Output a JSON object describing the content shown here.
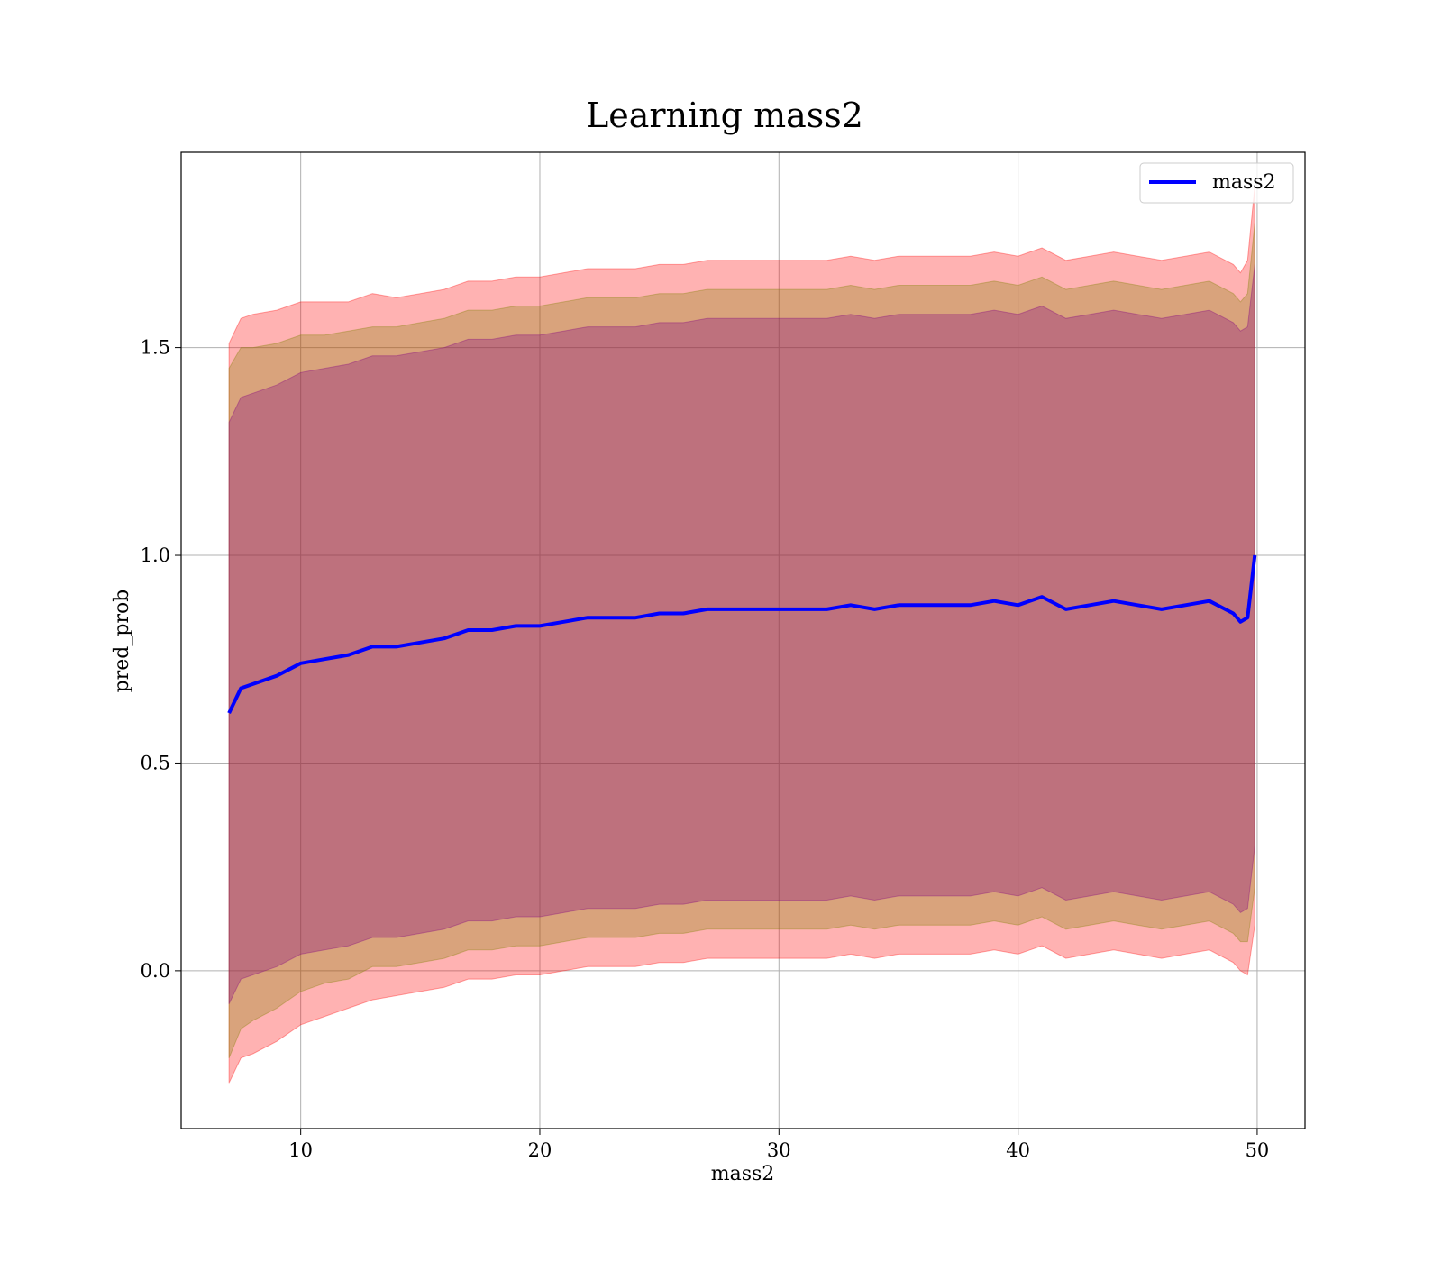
{
  "chart_data": {
    "type": "line",
    "title": "Learning mass2",
    "xlabel": "mass2",
    "ylabel": "pred_prob",
    "xlim": [
      5,
      52
    ],
    "ylim": [
      -0.38,
      1.97
    ],
    "x_ticks": [
      10,
      20,
      30,
      40,
      50
    ],
    "x_tick_labels": [
      "10",
      "20",
      "30",
      "40",
      "50"
    ],
    "y_ticks": [
      0.0,
      0.5,
      1.0,
      1.5
    ],
    "y_tick_labels": [
      "0.0",
      "0.5",
      "1.0",
      "1.5"
    ],
    "grid": true,
    "legend": {
      "position": "top-right",
      "entries": [
        "mass2"
      ]
    },
    "series": [
      {
        "name": "mass2",
        "color": "#0000ff",
        "x": [
          7.0,
          7.5,
          8,
          9,
          10,
          11,
          12,
          13,
          14,
          15,
          16,
          17,
          18,
          19,
          20,
          21,
          22,
          23,
          24,
          25,
          26,
          27,
          28,
          29,
          30,
          31,
          32,
          33,
          34,
          35,
          36,
          37,
          38,
          39,
          40,
          41,
          42,
          43,
          44,
          45,
          46,
          47,
          48,
          49,
          49.3,
          49.6,
          49.9
        ],
        "y": [
          0.62,
          0.68,
          0.69,
          0.71,
          0.74,
          0.75,
          0.76,
          0.78,
          0.78,
          0.79,
          0.8,
          0.82,
          0.82,
          0.83,
          0.83,
          0.84,
          0.85,
          0.85,
          0.85,
          0.86,
          0.86,
          0.87,
          0.87,
          0.87,
          0.87,
          0.87,
          0.87,
          0.88,
          0.87,
          0.88,
          0.88,
          0.88,
          0.88,
          0.89,
          0.88,
          0.9,
          0.87,
          0.88,
          0.89,
          0.88,
          0.87,
          0.88,
          0.89,
          0.86,
          0.84,
          0.85,
          1.0
        ]
      }
    ],
    "bands": [
      {
        "name": "band-outer",
        "color": "#ff0000",
        "opacity": 0.3,
        "half_width": [
          0.89,
          0.89,
          0.89,
          0.88,
          0.87,
          0.86,
          0.85,
          0.85,
          0.84,
          0.84,
          0.84,
          0.84,
          0.84,
          0.84,
          0.84,
          0.84,
          0.84,
          0.84,
          0.84,
          0.84,
          0.84,
          0.84,
          0.84,
          0.84,
          0.84,
          0.84,
          0.84,
          0.84,
          0.84,
          0.84,
          0.84,
          0.84,
          0.84,
          0.84,
          0.84,
          0.84,
          0.84,
          0.84,
          0.84,
          0.84,
          0.84,
          0.84,
          0.84,
          0.84,
          0.84,
          0.86,
          0.89
        ]
      },
      {
        "name": "band-middle",
        "color": "#808000",
        "opacity": 0.3,
        "half_width": [
          0.83,
          0.82,
          0.81,
          0.8,
          0.79,
          0.78,
          0.78,
          0.77,
          0.77,
          0.77,
          0.77,
          0.77,
          0.77,
          0.77,
          0.77,
          0.77,
          0.77,
          0.77,
          0.77,
          0.77,
          0.77,
          0.77,
          0.77,
          0.77,
          0.77,
          0.77,
          0.77,
          0.77,
          0.77,
          0.77,
          0.77,
          0.77,
          0.77,
          0.77,
          0.77,
          0.77,
          0.77,
          0.77,
          0.77,
          0.77,
          0.77,
          0.77,
          0.77,
          0.77,
          0.77,
          0.78,
          0.8
        ]
      },
      {
        "name": "band-inner",
        "color": "#800080",
        "opacity": 0.3,
        "half_width": [
          0.7,
          0.7,
          0.7,
          0.7,
          0.7,
          0.7,
          0.7,
          0.7,
          0.7,
          0.7,
          0.7,
          0.7,
          0.7,
          0.7,
          0.7,
          0.7,
          0.7,
          0.7,
          0.7,
          0.7,
          0.7,
          0.7,
          0.7,
          0.7,
          0.7,
          0.7,
          0.7,
          0.7,
          0.7,
          0.7,
          0.7,
          0.7,
          0.7,
          0.7,
          0.7,
          0.7,
          0.7,
          0.7,
          0.7,
          0.7,
          0.7,
          0.7,
          0.7,
          0.7,
          0.7,
          0.7,
          0.7
        ]
      }
    ]
  }
}
